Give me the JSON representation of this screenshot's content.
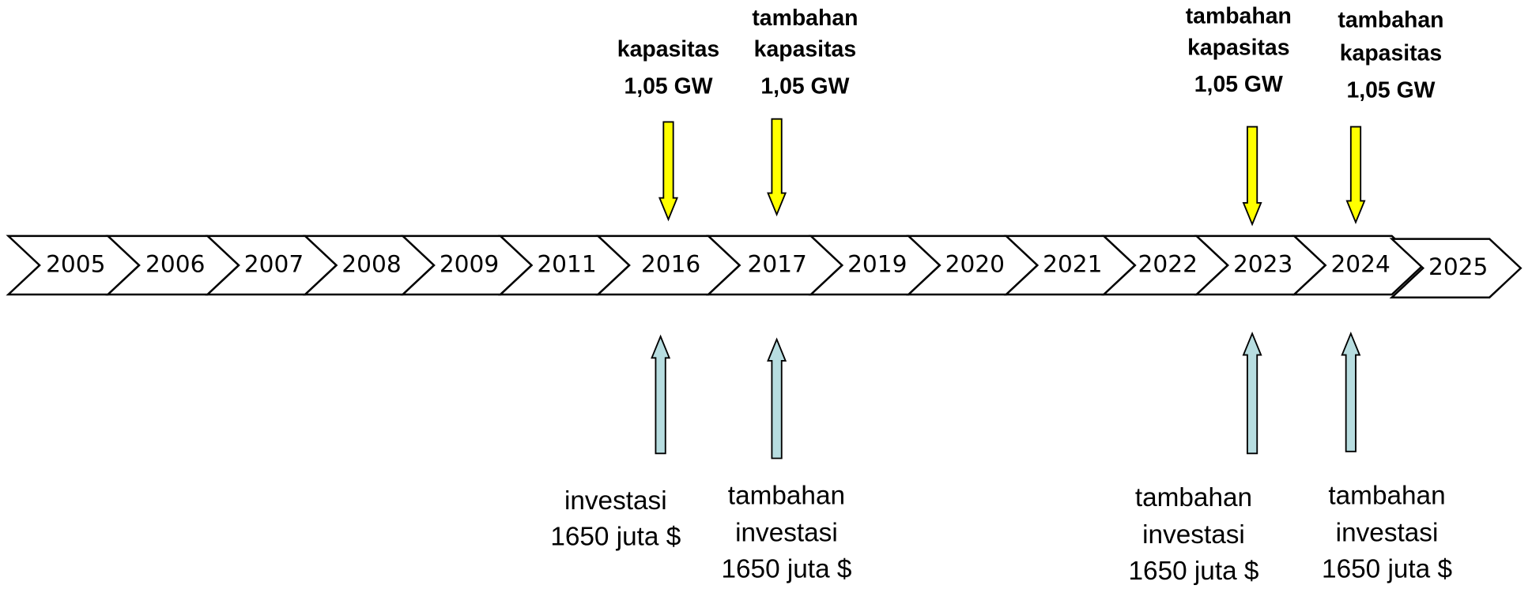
{
  "years": [
    "2005",
    "2006",
    "2007",
    "2008",
    "2009",
    "2011",
    "2016",
    "2017",
    "2019",
    "2020",
    "2021",
    "2022",
    "2023",
    "2024",
    "2025"
  ],
  "top_notes": [
    {
      "lines": [
        "kapasitas",
        "1,05 GW"
      ]
    },
    {
      "lines": [
        "tambahan",
        "kapasitas",
        "1,05 GW"
      ]
    },
    {
      "lines": [
        "tambahan",
        "kapasitas",
        "1,05 GW"
      ]
    },
    {
      "lines": [
        "tambahan",
        "kapasitas",
        "1,05 GW"
      ]
    }
  ],
  "bottom_notes": [
    {
      "lines": [
        "investasi",
        "1650 juta $"
      ]
    },
    {
      "lines": [
        "tambahan",
        "investasi",
        "1650 juta $"
      ]
    },
    {
      "lines": [
        "tambahan",
        "investasi",
        "1650 juta $"
      ]
    },
    {
      "lines": [
        "tambahan",
        "investasi",
        "1650 juta $"
      ]
    }
  ]
}
